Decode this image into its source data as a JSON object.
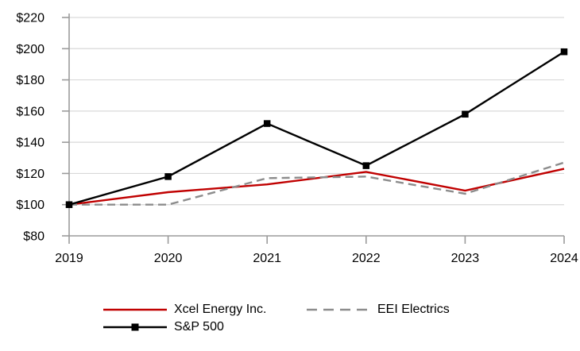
{
  "chart_data": {
    "type": "line",
    "title": "",
    "xlabel": "",
    "ylabel": "",
    "categories": [
      "2019",
      "2020",
      "2021",
      "2022",
      "2023",
      "2024"
    ],
    "series": [
      {
        "name": "Xcel Energy Inc.",
        "color": "#C00000",
        "dash": "solid",
        "marker": "none",
        "values": [
          100,
          108,
          113,
          121,
          109,
          123
        ]
      },
      {
        "name": "EEI Electrics",
        "color": "#8C8C8C",
        "dash": "dashed",
        "marker": "none",
        "values": [
          100,
          100,
          117,
          118,
          107,
          127
        ]
      },
      {
        "name": "S&P 500",
        "color": "#000000",
        "dash": "solid",
        "marker": "square",
        "values": [
          100,
          118,
          152,
          125,
          158,
          198
        ]
      }
    ],
    "ylim": [
      80,
      220
    ],
    "ytick_step": 20,
    "ytick_labels": [
      "$80",
      "$100",
      "$120",
      "$140",
      "$160",
      "$180",
      "$200",
      "$220"
    ],
    "xtick_labels": [
      "2019",
      "2020",
      "2021",
      "2022",
      "2023",
      "2024"
    ],
    "grid": true,
    "legend_position": "bottom"
  },
  "legend": {
    "items": [
      {
        "label": "Xcel Energy Inc."
      },
      {
        "label": "EEI Electrics"
      },
      {
        "label": "S&P 500"
      }
    ]
  },
  "colors": {
    "grid": "#D9D9D9",
    "axis": "#9B9B9B",
    "text": "#000000",
    "background": "#FFFFFF"
  }
}
